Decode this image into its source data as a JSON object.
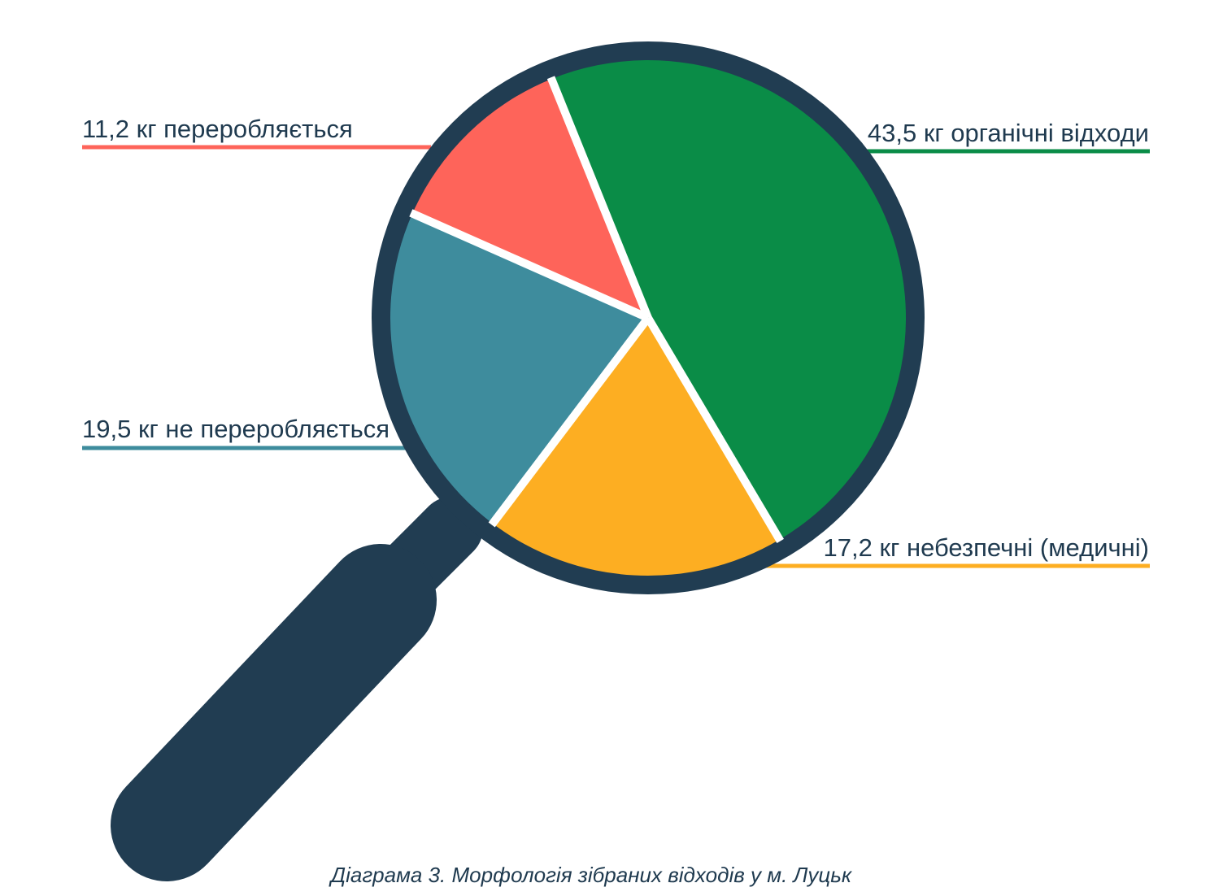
{
  "chart_data": {
    "type": "pie",
    "title": "",
    "caption": "Діаграма 3. Морфологія зібраних відходів у м. Луцьк",
    "slices": [
      {
        "label": "43,5 кг органічні відходи",
        "value": 43.5,
        "unit": "кг",
        "color": "#0a8c47"
      },
      {
        "label": "17,2 кг небезпечні (медичні)",
        "value": 17.2,
        "unit": "кг",
        "color": "#fdae22"
      },
      {
        "label": "19,5 кг не переробляється",
        "value": 19.5,
        "unit": "кг",
        "color": "#3e8c9d"
      },
      {
        "label": "11,2 кг переробляється",
        "value": 11.2,
        "unit": "кг",
        "color": "#fe645a"
      }
    ],
    "legend": "callout lines",
    "decoration": "magnifying-glass"
  },
  "colors": {
    "frame": "#213d52",
    "separator": "#ffffff"
  }
}
